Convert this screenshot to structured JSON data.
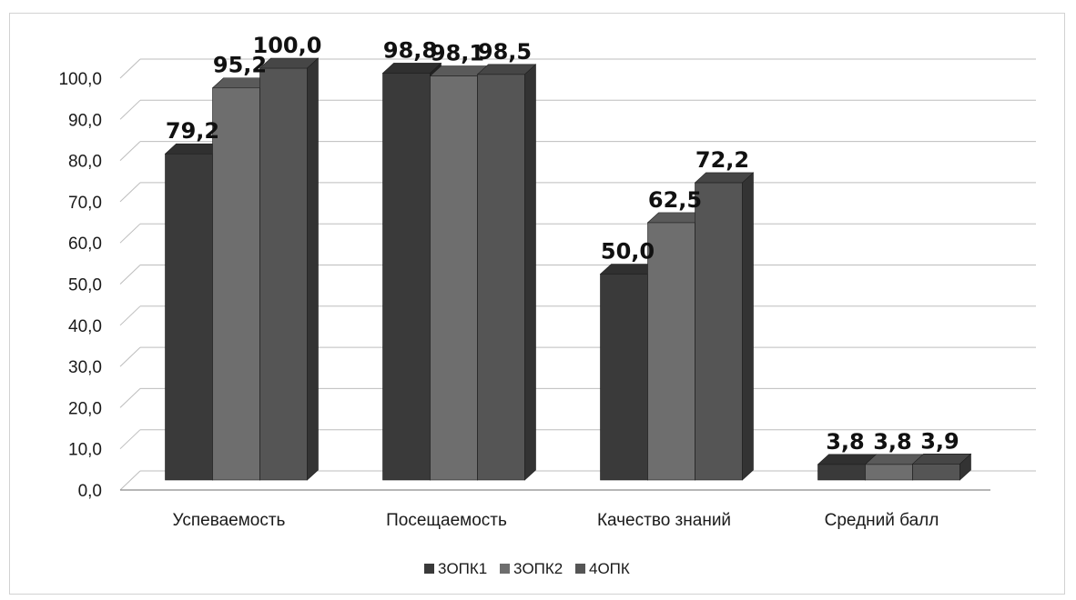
{
  "chart_data": {
    "type": "bar",
    "categories": [
      "Успеваемость",
      "Посещаемость",
      "Качество знаний",
      "Средний балл"
    ],
    "series": [
      {
        "name": "3ОПК1",
        "values": [
          79.2,
          98.8,
          50.0,
          3.8
        ],
        "labels": [
          "79,2",
          "98,8",
          "50,0",
          "3,8"
        ],
        "color": "#3a3a3a"
      },
      {
        "name": "3ОПК2",
        "values": [
          95.2,
          98.1,
          62.5,
          3.8
        ],
        "labels": [
          "95,2",
          "98,1",
          "62,5",
          "3,8"
        ],
        "color": "#6e6e6e"
      },
      {
        "name": "4ОПК",
        "values": [
          100.0,
          98.5,
          72.2,
          3.9
        ],
        "labels": [
          "100,0",
          "98,5",
          "72,2",
          "3,9"
        ],
        "color": "#555555"
      }
    ],
    "y_ticks": [
      "0,0",
      "10,0",
      "20,0",
      "30,0",
      "40,0",
      "50,0",
      "60,0",
      "70,0",
      "80,0",
      "90,0",
      "100,0"
    ],
    "ylim": [
      0,
      100
    ],
    "grid": true,
    "legend_position": "bottom",
    "three_d": true
  }
}
